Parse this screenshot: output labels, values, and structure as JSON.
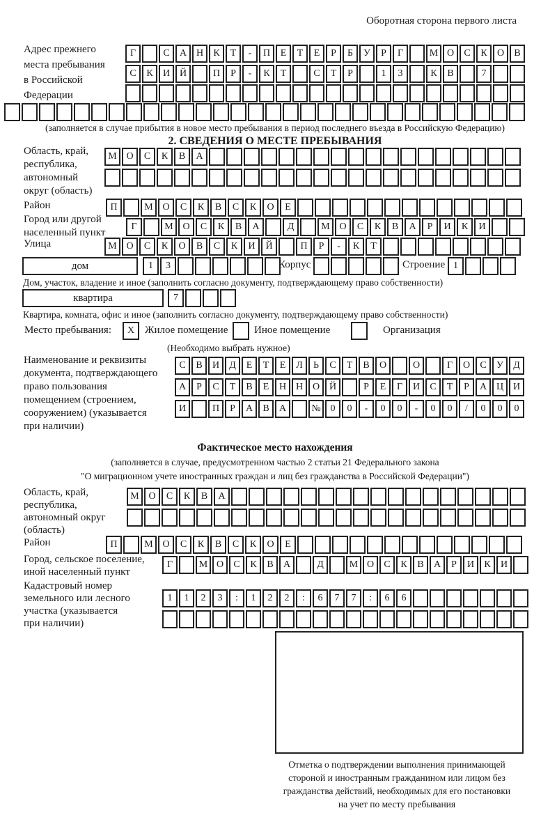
{
  "header": "Оборотная сторона первого листа",
  "prev_address": {
    "label": "Адрес прежнего\nместа пребывания\nв Российской\nФедерации",
    "row1": "Г САНКТ-ПЕТЕРБУРГ МОСКОВ",
    "row2": "СКИЙ ПР-КТ СТР 13 КВ 7",
    "row3": "",
    "row4": "",
    "note": "(заполняется в случае прибытия в новое место пребывания в период последнего въезда в Российскую Федерацию)"
  },
  "stay_info": {
    "title": "2. СВЕДЕНИЯ О МЕСТЕ ПРЕБЫВАНИЯ",
    "region_label": "Область, край,\nреспублика,\nавтономный\nокруг (область)",
    "region_row1": "МОСКВА",
    "region_row2": "",
    "district_label": "Район",
    "district_row": "П МОСКВСКОЕ",
    "city_label": "Город или другой\nнаселенный пункт",
    "city_row": "Г МОСКВА Д МОСКВАРИКИ",
    "street_label": "Улица",
    "street_row": "МОСКОВСКИЙ ПР-КТ",
    "house_label": "дом",
    "house_row": "13",
    "building_label": "Корпус",
    "building_row": "",
    "structure_label": "Строение",
    "structure_row": "1",
    "house_note": "Дом, участок, владение и иное (заполнить согласно документу, подтверждающему право собственности)",
    "apartment_label": "квартира",
    "apartment_row": "7",
    "apartment_note": "Квартира, комната, офис и иное (заполнить согласно документу, подтверждающему право собственности)",
    "stay_type_label": "Место пребывания:",
    "stay_type_mark": "X",
    "residential_label": "Жилое помещение",
    "other_label": "Иное помещение",
    "organization_label": "Организация",
    "choose_note": "(Необходимо выбрать нужное)",
    "doc_label": "Наименование и реквизиты\nдокумента, подтверждающего\nправо пользования\nпомещением (строением,\nсооружением) (указывается\nпри наличии)",
    "doc_row1": "СВИДЕТЕЛЬСТВО О ГОСУД",
    "doc_row2": "АРСТВЕННОЙ РЕГИСТРАЦИ",
    "doc_row3": "И ПРАВА №00-00-00/000"
  },
  "actual_location": {
    "title": "Фактическое место нахождения",
    "note_line1": "(заполняется в случае, предусмотренном частью 2 статьи 21 Федерального закона",
    "note_line2": "\"О миграционном учете иностранных граждан и лиц без гражданства в Российской Федерации\")",
    "region_label": "Область, край,\nреспублика,\nавтономный округ\n(область)",
    "region_row1": "МОСКВА",
    "region_row2": "",
    "district_label": "Район",
    "district_row": "П МОСКВСКОЕ",
    "city_label": "Город, сельское поселение,\nиной населенный пункт",
    "city_row": "Г МОСКВА Д МОСКВАРИКИ",
    "cadastral_label": "Кадастровый номер\nземельного или лесного\nучастка (указывается\nпри наличии)",
    "cadastral_row1": "1123:122:677:66",
    "cadastral_row2": "",
    "stamp_caption": "Отметка о подтверждении выполнения принимающей\nстороной и иностранным гражданином или лицом без\nгражданства действий, необходимых для его постановки\nна учет по месту пребывания"
  }
}
